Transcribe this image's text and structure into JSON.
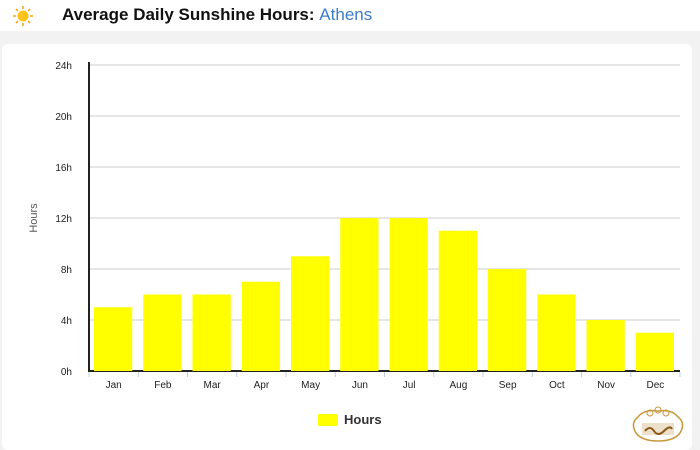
{
  "header": {
    "icon": "sun-icon",
    "title": "Average Daily Sunshine Hours:",
    "city": "Athens"
  },
  "watermark": {
    "text": "آیشم"
  },
  "chart_data": {
    "type": "bar",
    "categories": [
      "Jan",
      "Feb",
      "Mar",
      "Apr",
      "May",
      "Jun",
      "Jul",
      "Aug",
      "Sep",
      "Oct",
      "Nov",
      "Dec"
    ],
    "series": [
      {
        "name": "Hours",
        "values": [
          5,
          6,
          6,
          7,
          9,
          12,
          12,
          11,
          8,
          6,
          4,
          3
        ],
        "color": "#ffff00"
      }
    ],
    "ylabel": "Hours",
    "ylim": [
      0,
      24
    ],
    "yticks": [
      0,
      4,
      8,
      12,
      16,
      20,
      24
    ],
    "ytick_labels": [
      "0h",
      "4h",
      "8h",
      "12h",
      "16h",
      "20h",
      "24h"
    ],
    "grid": true,
    "legend": "bottom-center"
  }
}
